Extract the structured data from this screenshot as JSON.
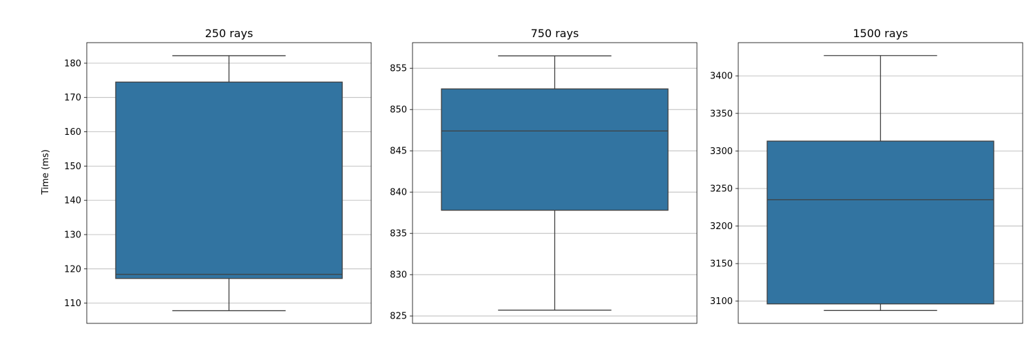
{
  "ylabel": "Time (ms)",
  "colors": {
    "box_fill": "#3274a1",
    "line": "#3f3f3f",
    "grid": "#b0b0b0"
  },
  "chart_data": [
    {
      "type": "box",
      "title": "250 rays",
      "ylabel": "Time (ms)",
      "ylim": [
        104.1,
        186.0
      ],
      "yticks": [
        110,
        120,
        130,
        140,
        150,
        160,
        170,
        180
      ],
      "grid": "horizontal",
      "box": {
        "whisker_low": 107.8,
        "q1": 117.2,
        "median": 118.4,
        "q3": 174.5,
        "whisker_high": 182.2
      }
    },
    {
      "type": "box",
      "title": "750 rays",
      "ylim": [
        824.1,
        858.1
      ],
      "yticks": [
        825,
        830,
        835,
        840,
        845,
        850,
        855
      ],
      "grid": "horizontal",
      "box": {
        "whisker_low": 825.7,
        "q1": 837.8,
        "median": 847.4,
        "q3": 852.5,
        "whisker_high": 856.5
      }
    },
    {
      "type": "box",
      "title": "1500 rays",
      "ylim": [
        3070.4,
        3444.2
      ],
      "yticks": [
        3100,
        3150,
        3200,
        3250,
        3300,
        3350,
        3400
      ],
      "grid": "horizontal",
      "box": {
        "whisker_low": 3087.5,
        "q1": 3096.3,
        "median": 3235.0,
        "q3": 3313.1,
        "whisker_high": 3427.0
      }
    }
  ]
}
